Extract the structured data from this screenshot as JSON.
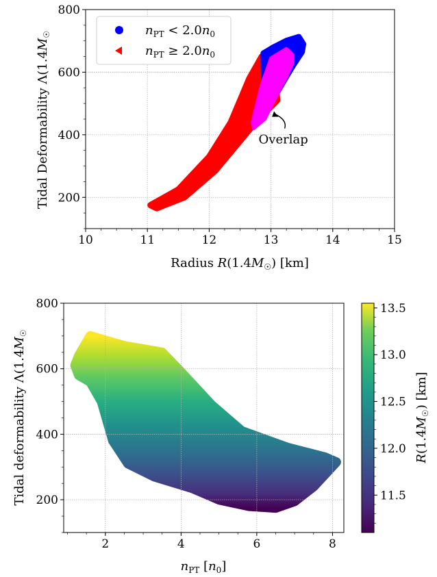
{
  "chart_data": [
    {
      "type": "scatter",
      "xlabel_plain": "Radius ",
      "xlabel_var": "R",
      "xlabel_args": "(1.4",
      "xlabel_M": "M",
      "xlabel_sun": "☉",
      "xlabel_close": ")",
      "xlabel_units": "[km]",
      "ylabel_plain": "Tidal Deformability ",
      "ylabel_lambda": "Λ",
      "ylabel_args": "(1.4",
      "ylabel_M": "M",
      "ylabel_sun": "☉",
      "xlim": [
        10,
        15
      ],
      "ylim": [
        100,
        800
      ],
      "xticks": [
        "10",
        "11",
        "12",
        "13",
        "14",
        "15"
      ],
      "yticks": [
        "200",
        "400",
        "600",
        "800"
      ],
      "grid": true,
      "legend_position": "top-left",
      "series": [
        {
          "name": "nPT < 2.0n0",
          "legend_n": "n",
          "legend_sub": "PT",
          "legend_rel": " < 2.0",
          "legend_n0": "n",
          "legend_sub0": "0",
          "color": "#0000ff",
          "marker": "circle",
          "region_upper": [
            [
              12.88,
              660
            ],
            [
              13.05,
              680
            ],
            [
              13.25,
              700
            ],
            [
              13.45,
              712
            ],
            [
              13.52,
              690
            ]
          ],
          "region_lower": [
            [
              12.9,
              480
            ],
            [
              13.05,
              520
            ],
            [
              13.2,
              570
            ],
            [
              13.35,
              620
            ],
            [
              13.5,
              665
            ]
          ]
        },
        {
          "name": "nPT ≥ 2.0n0",
          "legend_n": "n",
          "legend_sub": "PT",
          "legend_rel": " ≥ 2.0",
          "legend_n0": "n",
          "legend_sub0": "0",
          "color": "#ff0000",
          "marker": "triangle-left",
          "region_upper": [
            [
              11.05,
              175
            ],
            [
              11.5,
              225
            ],
            [
              12.0,
              330
            ],
            [
              12.35,
              440
            ],
            [
              12.65,
              580
            ],
            [
              12.85,
              650
            ],
            [
              13.05,
              668
            ]
          ],
          "region_lower": [
            [
              11.15,
              165
            ],
            [
              11.6,
              200
            ],
            [
              12.1,
              285
            ],
            [
              12.5,
              380
            ],
            [
              12.75,
              440
            ],
            [
              12.95,
              480
            ],
            [
              13.1,
              510
            ]
          ]
        },
        {
          "name": "Overlap",
          "color": "#ff00ff",
          "region_upper": [
            [
              12.7,
              440
            ],
            [
              12.85,
              560
            ],
            [
              13.0,
              645
            ],
            [
              13.25,
              675
            ],
            [
              13.35,
              655
            ]
          ],
          "region_lower": [
            [
              12.72,
              420
            ],
            [
              12.9,
              450
            ],
            [
              13.05,
              510
            ],
            [
              13.25,
              585
            ],
            [
              13.35,
              630
            ]
          ]
        }
      ],
      "annotation": {
        "text": "Overlap",
        "text_at": [
          13.2,
          385
        ],
        "arrow_to": [
          13.05,
          475
        ]
      }
    },
    {
      "type": "scatter",
      "xlabel_n": "n",
      "xlabel_sub": "PT",
      "xlabel_units": "[",
      "xlabel_n0": "n",
      "xlabel_sub0": "0",
      "xlabel_close": "]",
      "ylabel_plain": "Tidal deformability ",
      "ylabel_lambda": "Λ",
      "ylabel_args": "(1.4",
      "ylabel_M": "M",
      "ylabel_sun": "☉",
      "xlim": [
        0.9,
        8.3
      ],
      "ylim": [
        100,
        800
      ],
      "xticks": [
        "2",
        "4",
        "6",
        "8"
      ],
      "yticks": [
        "200",
        "400",
        "600",
        "800"
      ],
      "grid": true,
      "colorbar": {
        "label_var": "R",
        "label_args": "(1.4",
        "label_M": "M",
        "label_sun": "☉",
        "label_units": ") [km]",
        "range": [
          11.1,
          13.55
        ],
        "ticks": [
          "11.5",
          "12.0",
          "12.5",
          "13.0",
          "13.5"
        ],
        "colormap": "viridis"
      },
      "region_outline": [
        [
          1.3,
          640
        ],
        [
          1.6,
          700
        ],
        [
          1.9,
          690
        ],
        [
          2.5,
          670
        ],
        [
          3.5,
          650
        ],
        [
          4.0,
          590
        ],
        [
          4.8,
          490
        ],
        [
          5.6,
          410
        ],
        [
          6.8,
          360
        ],
        [
          7.8,
          330
        ],
        [
          8.1,
          315
        ],
        [
          7.9,
          290
        ],
        [
          7.5,
          240
        ],
        [
          7.0,
          195
        ],
        [
          6.5,
          175
        ],
        [
          5.8,
          180
        ],
        [
          5.0,
          200
        ],
        [
          4.3,
          235
        ],
        [
          3.3,
          270
        ],
        [
          2.6,
          310
        ],
        [
          2.2,
          380
        ],
        [
          1.9,
          500
        ],
        [
          1.6,
          560
        ],
        [
          1.3,
          580
        ],
        [
          1.2,
          610
        ]
      ]
    }
  ]
}
